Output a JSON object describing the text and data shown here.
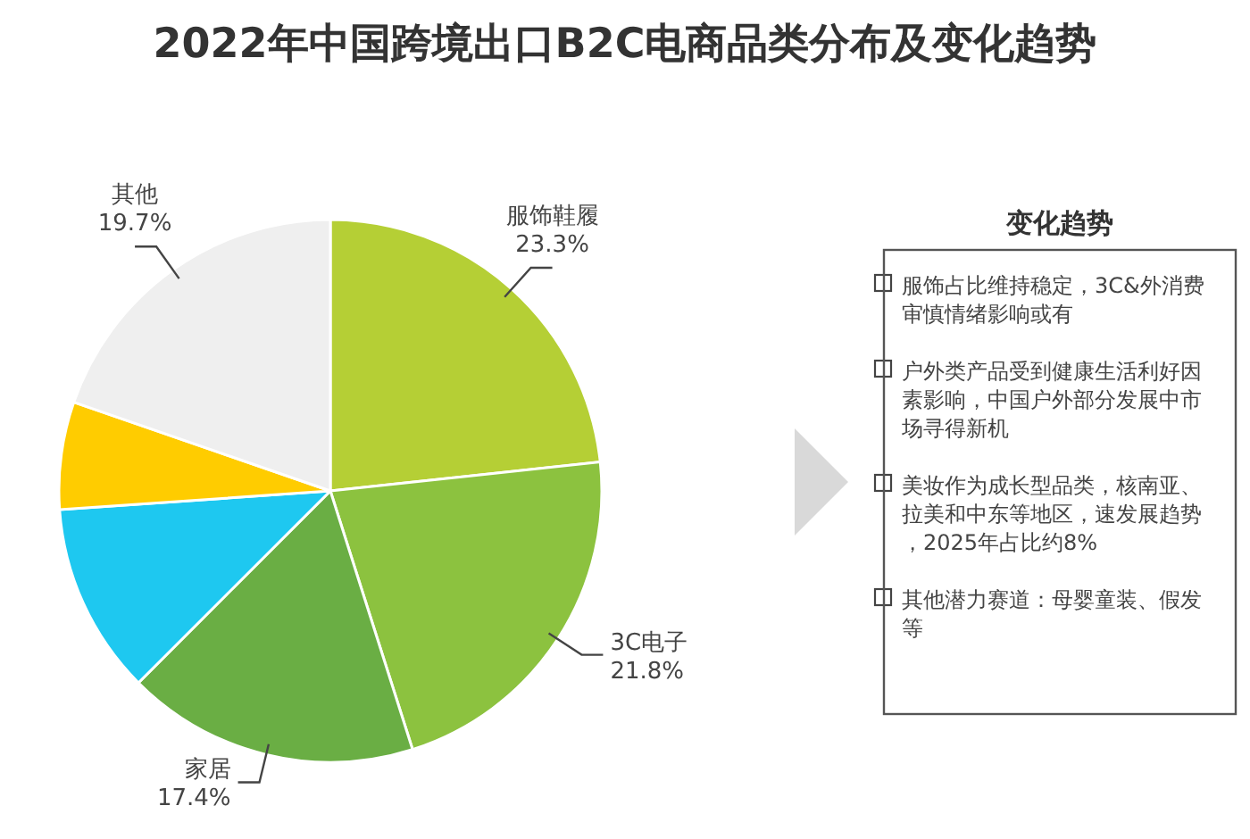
{
  "chart_data": [
    {
      "type": "pie",
      "title": "2022年中国跨境出口B2C电商品类分布及变化趋势",
      "categories": [
        "服饰鞋履",
        "3C电子",
        "家居",
        null,
        null,
        "其他"
      ],
      "values": [
        23.3,
        21.8,
        17.4,
        11.4,
        6.4,
        19.7
      ],
      "value_labels": [
        "23.3%",
        "21.8%",
        "17.4%",
        null,
        null,
        "19.7%"
      ],
      "colors": [
        "#b5cf35",
        "#8cc23f",
        "#6aae44",
        "#1ec8f0",
        "#ffcc00",
        "#efefef"
      ]
    },
    {
      "type": "other",
      "title": "变化趋势",
      "annotations": [
        "服饰占比维持稳定，3C&外消费审慎情绪影响或有",
        "户外类产品受到健康生活利好因素影响，中国户外部分发展中市场寻得新机",
        "美妆作为成长型品类，核南亚、拉美和中东等地区，速发展趋势，2025年占比约8%",
        "其他潜力赛道：母婴童装、假发等"
      ]
    }
  ]
}
